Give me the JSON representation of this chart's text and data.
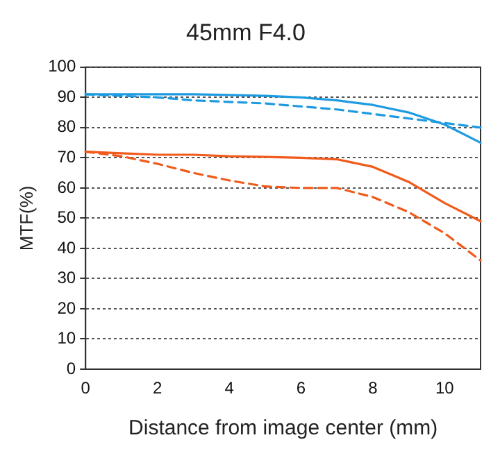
{
  "chart_data": {
    "type": "line",
    "title": "45mm F4.0",
    "xlabel": "Distance from image center (mm)",
    "ylabel": "MTF(%)",
    "x": [
      0,
      1,
      2,
      3,
      4,
      5,
      6,
      7,
      8,
      9,
      10,
      11
    ],
    "series": [
      {
        "color": "#1e9be0",
        "line_style": "solid",
        "values": [
          91,
          91,
          91,
          91,
          90.8,
          90.5,
          90,
          89,
          87.5,
          85,
          81,
          75
        ]
      },
      {
        "color": "#1e9be0",
        "line_style": "dashed",
        "values": [
          91,
          90.5,
          90,
          89,
          88.5,
          88,
          87,
          86,
          84.5,
          83,
          81.5,
          80
        ]
      },
      {
        "color": "#f05a1a",
        "line_style": "solid",
        "values": [
          72,
          71.5,
          71,
          71,
          70.5,
          70.3,
          70,
          69.5,
          67,
          62,
          55,
          49
        ]
      },
      {
        "color": "#f05a1a",
        "line_style": "dashed",
        "values": [
          72,
          70.5,
          68,
          65,
          62.5,
          60.5,
          60,
          60,
          57,
          52,
          45,
          36
        ]
      }
    ],
    "xlim": [
      0,
      11
    ],
    "xticks": [
      0,
      2,
      4,
      6,
      8,
      10
    ],
    "ylim": [
      0,
      100
    ],
    "yticks": [
      0,
      10,
      20,
      30,
      40,
      50,
      60,
      70,
      80,
      90,
      100
    ],
    "grid": "y",
    "legend": false,
    "marker": "none"
  }
}
